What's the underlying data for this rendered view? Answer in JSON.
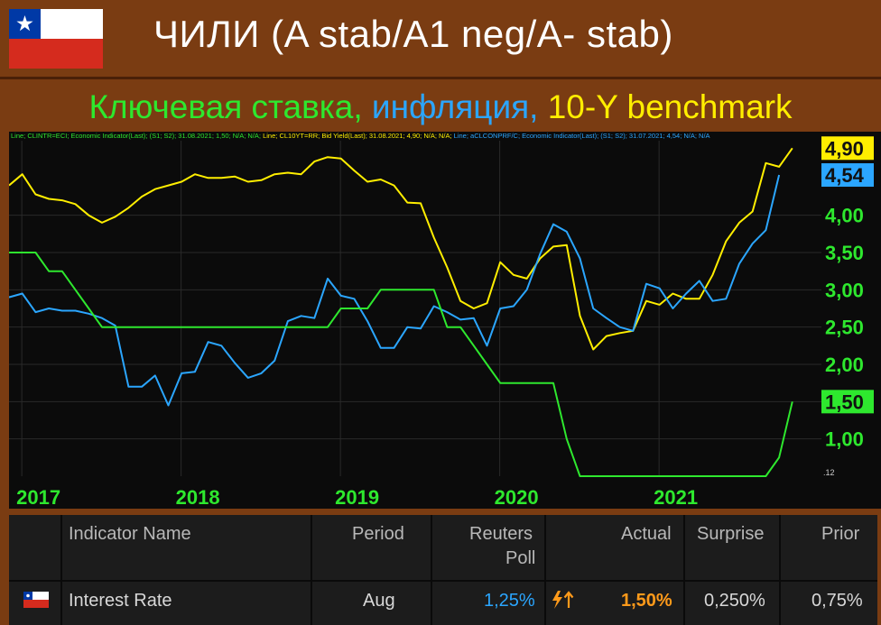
{
  "header": {
    "title": "ЧИЛИ (A stab/A1 neg/A- stab)",
    "flag_icon": "chile-flag-icon"
  },
  "subtitle": {
    "part1": "Ключевая ставка, ",
    "part2": "инфляция, ",
    "part3": "10-Y benchmark",
    "color1": "#2ee82e",
    "color2": "#2ba6ff",
    "color3": "#ffee00"
  },
  "legend": {
    "s1": "Line; CLINTR=ECI; Economic Indicator(Last); (S1; S2); 31.08.2021; 1,50; N/A; N/A;",
    "s2": " Line; CL10YT=RR; Bid Yield(Last); 31.08.2021; 4,90; N/A; N/A;",
    "s3": " Line; aCLCONPRF/C; Economic Indicator(Last); (S1; S2); 31.07.2021; 4,54; N/A; N/A"
  },
  "chart_data": {
    "type": "line",
    "x_start": "2016.92",
    "xlabels": [
      "2017",
      "2018",
      "2019",
      "2020",
      "2021"
    ],
    "ylim": [
      0.5,
      5.0
    ],
    "yticks": [
      "4,00",
      "3,50",
      "3,00",
      "2,50",
      "2,00",
      "1,00"
    ],
    "y_markers": [
      {
        "label": "4,90",
        "value": 4.9,
        "bg": "#ffee00"
      },
      {
        "label": "4,54",
        "value": 4.54,
        "bg": "#2ba6ff"
      },
      {
        "label": "1,50",
        "value": 1.5,
        "bg": "#2ee82e"
      }
    ],
    "series": [
      {
        "name": "CL10YT=RR",
        "color": "#ffee00",
        "values": [
          4.4,
          4.55,
          4.28,
          4.22,
          4.2,
          4.15,
          4.0,
          3.9,
          3.98,
          4.1,
          4.25,
          4.35,
          4.4,
          4.45,
          4.55,
          4.5,
          4.5,
          4.52,
          4.45,
          4.47,
          4.55,
          4.57,
          4.55,
          4.72,
          4.78,
          4.76,
          4.6,
          4.45,
          4.48,
          4.4,
          4.17,
          4.16,
          3.7,
          3.3,
          2.85,
          2.75,
          2.82,
          3.37,
          3.2,
          3.15,
          3.42,
          3.58,
          3.6,
          2.65,
          2.2,
          2.38,
          2.42,
          2.45,
          2.85,
          2.8,
          2.95,
          2.88,
          2.88,
          3.2,
          3.65,
          3.9,
          4.05,
          4.7,
          4.65,
          4.9
        ]
      },
      {
        "name": "aCLCONPRF/C",
        "color": "#2ba6ff",
        "values": [
          2.9,
          2.95,
          2.7,
          2.75,
          2.72,
          2.72,
          2.68,
          2.62,
          2.52,
          1.7,
          1.7,
          1.85,
          1.45,
          1.88,
          1.9,
          2.3,
          2.25,
          2.02,
          1.82,
          1.88,
          2.05,
          2.58,
          2.65,
          2.62,
          3.15,
          2.92,
          2.88,
          2.58,
          2.22,
          2.22,
          2.5,
          2.48,
          2.78,
          2.7,
          2.6,
          2.62,
          2.25,
          2.75,
          2.78,
          3.0,
          3.48,
          3.88,
          3.78,
          3.42,
          2.75,
          2.62,
          2.5,
          2.45,
          3.08,
          3.02,
          2.75,
          2.95,
          3.12,
          2.85,
          2.88,
          3.35,
          3.62,
          3.8,
          4.54
        ]
      },
      {
        "name": "CLINTR=ECI",
        "color": "#2ee82e",
        "values": [
          3.5,
          3.5,
          3.5,
          3.25,
          3.25,
          3.0,
          2.75,
          2.5,
          2.5,
          2.5,
          2.5,
          2.5,
          2.5,
          2.5,
          2.5,
          2.5,
          2.5,
          2.5,
          2.5,
          2.5,
          2.5,
          2.5,
          2.5,
          2.5,
          2.5,
          2.75,
          2.75,
          2.75,
          3.0,
          3.0,
          3.0,
          3.0,
          3.0,
          2.5,
          2.5,
          2.25,
          2.0,
          1.75,
          1.75,
          1.75,
          1.75,
          1.75,
          1.0,
          0.5,
          0.5,
          0.5,
          0.5,
          0.5,
          0.5,
          0.5,
          0.5,
          0.5,
          0.5,
          0.5,
          0.5,
          0.5,
          0.5,
          0.5,
          0.75,
          1.5
        ]
      }
    ],
    "corner_label": ".12"
  },
  "table": {
    "headers": {
      "indicator": "Indicator Name",
      "period": "Period",
      "reuters": "Reuters",
      "poll": "Poll",
      "actual": "Actual",
      "surprise": "Surprise",
      "prior": "Prior"
    },
    "row": {
      "name": "Interest Rate",
      "period": "Aug",
      "poll": "1,25%",
      "surprise_icon": "lightning-up-arrow-icon",
      "actual": "1,50%",
      "surprise": "0,250%",
      "prior": "0,75%"
    },
    "colors": {
      "poll": "#2ba6ff",
      "actual": "#ff9a1a",
      "text": "#d8d8d8",
      "icon": "#ff9a1a"
    }
  }
}
